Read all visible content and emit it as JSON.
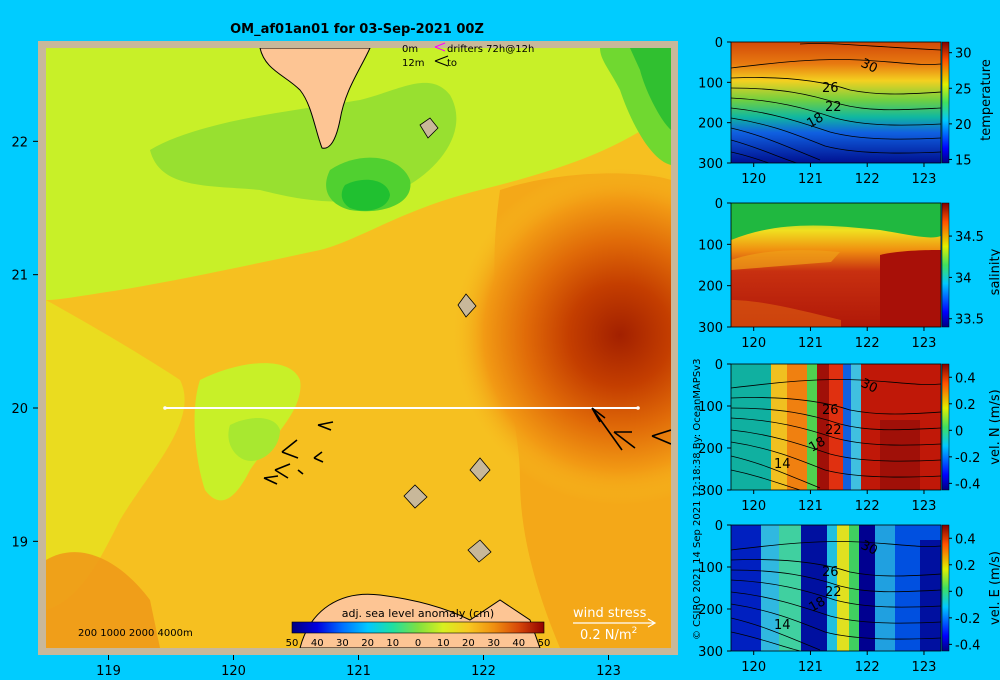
{
  "title": "OM_af01an01 for 03-Sep-2021 00Z",
  "credit": "© CSIRO 2021   14 Sep 2021 12:18:38 By: OceanMAPSv3",
  "legend_drifters": {
    "line1_depth": "0m",
    "line1_label": "drifters 72h@12h",
    "line2_depth": "12m",
    "line2_label": "to"
  },
  "isobaths_label": "200  1000  2000  4000m",
  "wind_stress": {
    "label": "wind stress",
    "scale": "0.2 N/m",
    "scale_sup": "2"
  },
  "colors": {
    "background": "#00ccff",
    "land": "#fdc594",
    "frame": "#c8b89a",
    "section_line": "#ffffff",
    "drifter_0m": "#ff00ff"
  },
  "chart_data": [
    {
      "type": "heatmap",
      "name": "map",
      "title": "OM_af01an01 for 03-Sep-2021 00Z",
      "xticks": [
        119,
        120,
        121,
        122,
        123
      ],
      "yticks": [
        19,
        20,
        21,
        22
      ],
      "xlim": [
        118.5,
        123.5
      ],
      "ylim": [
        18.2,
        22.7
      ],
      "colorbar": {
        "label": "adj. sea level anomaly (cm)",
        "ticks": [
          "50",
          "40",
          "30",
          "20",
          "10",
          "0",
          "10",
          "20",
          "30",
          "40",
          "50"
        ],
        "range": [
          -50,
          50
        ]
      },
      "section_line": {
        "lat": 20,
        "lon_start": 119.5,
        "lon_end": 123.2
      }
    },
    {
      "type": "heatmap",
      "name": "temperature-section",
      "xticks": [
        120,
        121,
        122,
        123
      ],
      "yticks": [
        0,
        100,
        200,
        300
      ],
      "colorbar": {
        "label": "temperature",
        "ticks": [
          30,
          25,
          20,
          15
        ]
      },
      "contour_labels": [
        "30",
        "26",
        "22",
        "18"
      ]
    },
    {
      "type": "heatmap",
      "name": "salinity-section",
      "xticks": [
        120,
        121,
        122,
        123
      ],
      "yticks": [
        0,
        100,
        200,
        300
      ],
      "colorbar": {
        "label": "salinity",
        "ticks": [
          34.5,
          34,
          33.5
        ]
      },
      "contour_labels": []
    },
    {
      "type": "heatmap",
      "name": "velocity-north-section",
      "xticks": [
        120,
        121,
        122,
        123
      ],
      "yticks": [
        0,
        100,
        200,
        300
      ],
      "colorbar": {
        "label": "vel. N (m/s)",
        "ticks": [
          0.4,
          0.2,
          0,
          -0.2,
          -0.4
        ]
      },
      "contour_labels": [
        "30",
        "26",
        "22",
        "18",
        "14"
      ]
    },
    {
      "type": "heatmap",
      "name": "velocity-east-section",
      "xticks": [
        120,
        121,
        122,
        123
      ],
      "yticks": [
        0,
        100,
        200,
        300
      ],
      "colorbar": {
        "label": "vel. E (m/s)",
        "ticks": [
          0.4,
          0.2,
          0,
          -0.2,
          -0.4
        ]
      },
      "contour_labels": [
        "30",
        "26",
        "22",
        "18",
        "14"
      ]
    }
  ]
}
